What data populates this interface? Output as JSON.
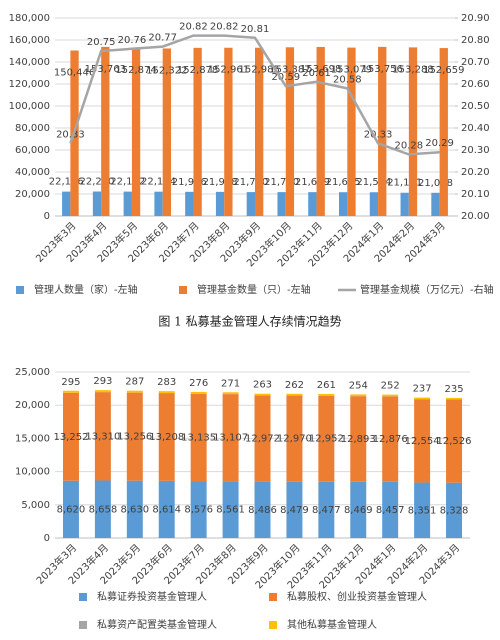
{
  "chart_data": [
    {
      "type": "bar",
      "title": "图 1 私募基金管理人存续情况趋势",
      "categories": [
        "2023年3月",
        "2023年4月",
        "2023年5月",
        "2023年6月",
        "2023年7月",
        "2023年8月",
        "2023年9月",
        "2023年10月",
        "2023年11月",
        "2023年12月",
        "2024年1月",
        "2024年2月",
        "2024年3月"
      ],
      "series": [
        {
          "name": "管理人数量（家）-左轴",
          "color": "#5b9bd5",
          "values": [
            22176,
            22270,
            22182,
            22114,
            21996,
            21948,
            21730,
            21720,
            21699,
            21625,
            21594,
            21151,
            21098
          ],
          "value_labels": [
            "22,176",
            "22,270",
            "22,182",
            "22,114",
            "21,996",
            "21,948",
            "21,730",
            "21,720",
            "21,699",
            "21,625",
            "21,594",
            "21,151",
            "21,098"
          ]
        },
        {
          "name": "管理基金数量（只）-左轴",
          "color": "#ed7d31",
          "values": [
            150446,
            153763,
            152874,
            152322,
            152878,
            152961,
            152985,
            153387,
            153698,
            153079,
            153756,
            153288,
            152659
          ],
          "value_labels": [
            "150,446",
            "153,763",
            "152,874",
            "152,322",
            "152,878",
            "152,961",
            "152,985",
            "153,387",
            "153,698",
            "153,079",
            "153,756",
            "153,288",
            "152,659"
          ]
        },
        {
          "name": "管理基金规模（万亿元）-右轴",
          "color": "#a5a5a5",
          "type": "line",
          "axis": "y2",
          "values": [
            20.33,
            20.75,
            20.76,
            20.77,
            20.82,
            20.82,
            20.81,
            20.59,
            20.61,
            20.58,
            20.33,
            20.28,
            20.29
          ]
        }
      ],
      "ylim": [
        0,
        180000
      ],
      "yticks": [
        0,
        {
          "value": 20000,
          "label": "20,000"
        },
        {
          "value": 40000,
          "label": "40,000"
        },
        {
          "value": 60000,
          "label": "60,000"
        },
        {
          "value": 80000,
          "label": "80,000"
        },
        {
          "value": 100000,
          "label": "100,000"
        },
        {
          "value": 120000,
          "label": "120,000"
        },
        {
          "value": 140000,
          "label": "140,000"
        },
        {
          "value": 160000,
          "label": "160,000"
        },
        {
          "value": 180000,
          "label": "180,000"
        }
      ],
      "y2lim": [
        20,
        20.9
      ],
      "y2ticks": [
        {
          "value": 20,
          "label": "20.00"
        },
        {
          "value": 20.1,
          "label": "20.10"
        },
        {
          "value": 20.2,
          "label": "20.20"
        },
        {
          "value": 20.3,
          "label": "20.30"
        },
        {
          "value": 20.4,
          "label": "20.40"
        },
        {
          "value": 20.5,
          "label": "20.50"
        },
        {
          "value": 20.6,
          "label": "20.60"
        },
        {
          "value": 20.7,
          "label": "20.70"
        },
        {
          "value": 20.8,
          "label": "20.80"
        },
        {
          "value": 20.9,
          "label": "20.90"
        }
      ],
      "legend": "bottom"
    },
    {
      "type": "stacked_bar",
      "categories": [
        "2023年3月",
        "2023年4月",
        "2023年5月",
        "2023年6月",
        "2023年7月",
        "2023年8月",
        "2023年9月",
        "2023年10月",
        "2023年11月",
        "2023年12月",
        "2024年1月",
        "2024年2月",
        "2024年3月"
      ],
      "series": [
        {
          "name": "私募证券投资基金管理人",
          "color": "#5b9bd5",
          "values": [
            8620,
            8658,
            8630,
            8614,
            8576,
            8561,
            8486,
            8479,
            8477,
            8469,
            8457,
            8351,
            8328
          ],
          "value_labels": [
            "8,620",
            "8,658",
            "8,630",
            "8,614",
            "8,576",
            "8,561",
            "8,486",
            "8,479",
            "8,477",
            "8,469",
            "8,457",
            "8,351",
            "8,328"
          ]
        },
        {
          "name": "私募股权、创业投资基金管理人",
          "color": "#ed7d31",
          "values": [
            13252,
            13310,
            13256,
            13208,
            13135,
            13107,
            12972,
            12970,
            12952,
            12893,
            12876,
            12554,
            12526
          ],
          "value_labels": [
            "13,252",
            "13,310",
            "13,256",
            "13,208",
            "13,135",
            "13,107",
            "12,972",
            "12,970",
            "12,952",
            "12,893",
            "12,876",
            "12,554",
            "12,526"
          ]
        },
        {
          "name": "私募资产配置类基金管理人",
          "color": "#a5a5a5",
          "values": [
            9,
            9,
            9,
            9,
            9,
            9,
            9,
            9,
            9,
            9,
            9,
            9,
            9
          ]
        },
        {
          "name": "其他私募基金管理人",
          "color": "#ffc000",
          "values": [
            295,
            293,
            287,
            283,
            276,
            271,
            263,
            262,
            261,
            254,
            252,
            237,
            235
          ]
        }
      ],
      "ylim": [
        0,
        25000
      ],
      "yticks": [
        0,
        {
          "value": 5000,
          "label": "5,000"
        },
        {
          "value": 10000,
          "label": "10,000"
        },
        {
          "value": 15000,
          "label": "15,000"
        },
        {
          "value": 20000,
          "label": "20,000"
        },
        {
          "value": 25000,
          "label": "25,000"
        }
      ],
      "legend": "bottom"
    }
  ]
}
